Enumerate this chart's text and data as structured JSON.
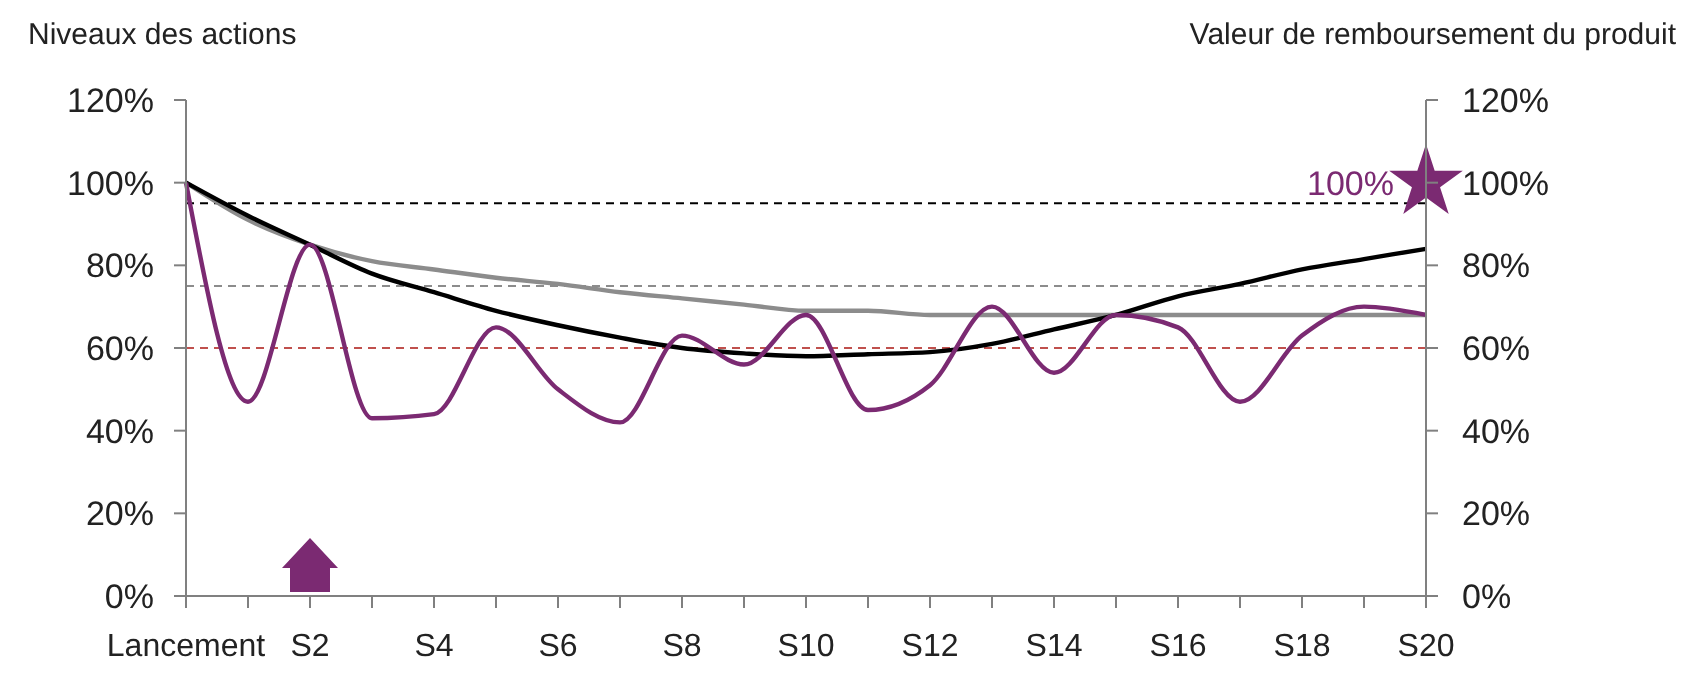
{
  "chart_data": {
    "type": "line",
    "xlabel": null,
    "ylabel": "Niveaux des actions",
    "y2label": "Valeur de remboursement du produit",
    "categories": [
      "Lancement",
      null,
      "S2",
      null,
      "S4",
      null,
      "S6",
      null,
      "S8",
      null,
      "S10",
      null,
      "S12",
      null,
      "S14",
      null,
      "S16",
      null,
      "S18",
      null,
      "S20"
    ],
    "ylim": [
      0,
      120
    ],
    "yticks": [
      {
        "value": 0,
        "label": "0%"
      },
      {
        "value": 20,
        "label": "20%"
      },
      {
        "value": 40,
        "label": "40%"
      },
      {
        "value": 60,
        "label": "60%"
      },
      {
        "value": 80,
        "label": "80%"
      },
      {
        "value": 100,
        "label": "100%"
      },
      {
        "value": 120,
        "label": "120%"
      }
    ],
    "y2lim": [
      0,
      120
    ],
    "y2ticks": [
      {
        "value": 0,
        "label": "0%"
      },
      {
        "value": 20,
        "label": "20%"
      },
      {
        "value": 40,
        "label": "40%"
      },
      {
        "value": 60,
        "label": "60%"
      },
      {
        "value": 80,
        "label": "80%"
      },
      {
        "value": 100,
        "label": "100%"
      },
      {
        "value": 120,
        "label": "120%"
      }
    ],
    "grid": false,
    "marker": "none",
    "line_style": "solid",
    "series": [
      {
        "type": "line",
        "color": "#8c8c8c",
        "values": [
          100,
          91,
          85,
          81,
          79,
          77,
          75.5,
          73.5,
          72,
          70.5,
          69,
          69,
          68,
          68,
          68,
          68,
          68,
          68,
          68,
          68,
          68
        ]
      },
      {
        "type": "line",
        "color": "#000000",
        "values": [
          100,
          92,
          85,
          78,
          73.5,
          69,
          65.5,
          62.5,
          60,
          58.7,
          58,
          58.5,
          59,
          61,
          64.5,
          68,
          72.5,
          75.5,
          79,
          81.5,
          84
        ]
      },
      {
        "type": "line",
        "color": "#7b2a72",
        "values": [
          100,
          47,
          85,
          43,
          44,
          65,
          50,
          42,
          63,
          56,
          68,
          45,
          51,
          70,
          54,
          68,
          65,
          47,
          63,
          70,
          68
        ]
      },
      {
        "type": "scatter",
        "color": "#7b2a72",
        "marker": "star",
        "values": [
          null,
          null,
          null,
          null,
          null,
          null,
          null,
          null,
          null,
          null,
          null,
          null,
          null,
          null,
          null,
          null,
          null,
          null,
          null,
          null,
          100
        ],
        "value_labels": [
          null,
          null,
          null,
          null,
          null,
          null,
          null,
          null,
          null,
          null,
          null,
          null,
          null,
          null,
          null,
          null,
          null,
          null,
          null,
          null,
          "100%"
        ]
      }
    ],
    "ref_lines": [
      {
        "axis": "y",
        "value": 95,
        "color": "#000000",
        "line_style": "dashed"
      },
      {
        "axis": "y",
        "value": 75,
        "color": "#8c8c8c",
        "line_style": "dashed"
      },
      {
        "axis": "y",
        "value": 60,
        "color": "#c0504d",
        "line_style": "dashed"
      }
    ]
  }
}
